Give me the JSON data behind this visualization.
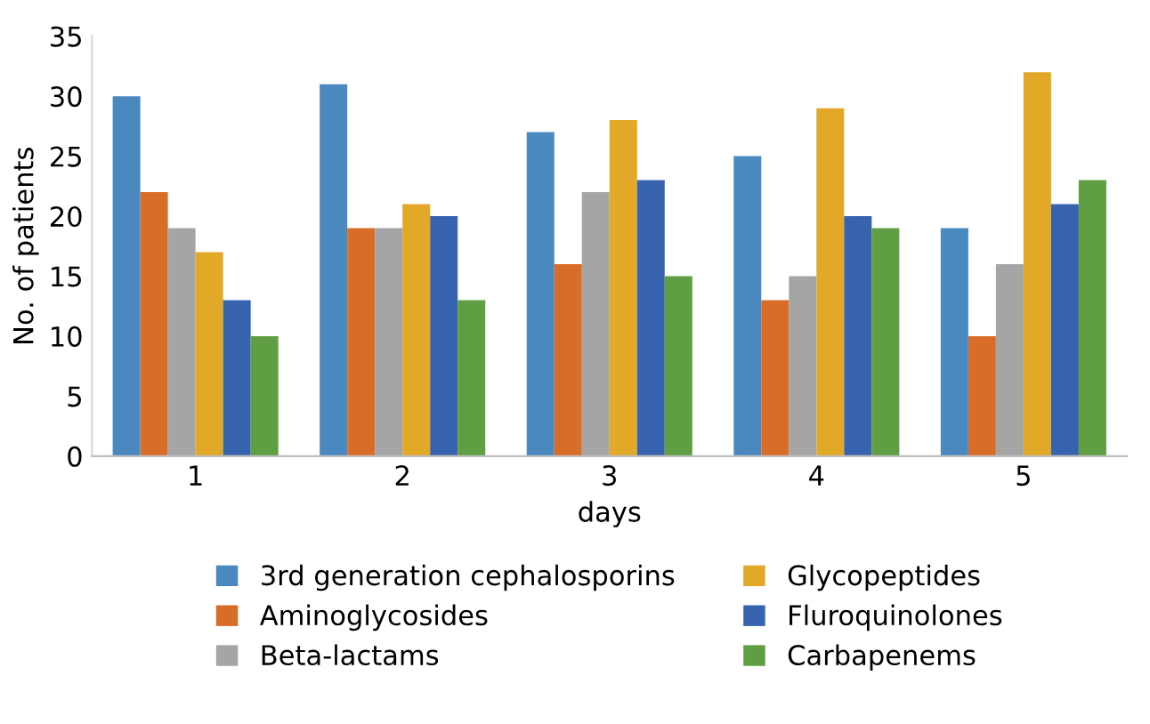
{
  "chart_data": {
    "type": "bar",
    "xlabel": "days",
    "ylabel": "No. of patients",
    "categories": [
      "1",
      "2",
      "3",
      "4",
      "5"
    ],
    "series": [
      {
        "name": "3rd generation cephalosporins",
        "color": "#4a89c0",
        "values": [
          30,
          31,
          27,
          25,
          19
        ]
      },
      {
        "name": "Aminoglycosides",
        "color": "#d86d2a",
        "values": [
          22,
          19,
          16,
          13,
          10
        ]
      },
      {
        "name": "Beta-lactams",
        "color": "#a5a5a5",
        "values": [
          19,
          19,
          22,
          15,
          16
        ]
      },
      {
        "name": "Glycopeptides",
        "color": "#e2a928",
        "values": [
          17,
          21,
          28,
          29,
          32
        ]
      },
      {
        "name": "Fluroquinolones",
        "color": "#3763ae",
        "values": [
          13,
          20,
          23,
          20,
          21
        ]
      },
      {
        "name": "Carbapenems",
        "color": "#5f9e42",
        "values": [
          10,
          13,
          15,
          19,
          23
        ]
      }
    ],
    "ylim": [
      0,
      35
    ],
    "yticks": [
      0,
      5,
      10,
      15,
      20,
      25,
      30,
      35
    ],
    "grid": false,
    "legend": "bottom"
  }
}
